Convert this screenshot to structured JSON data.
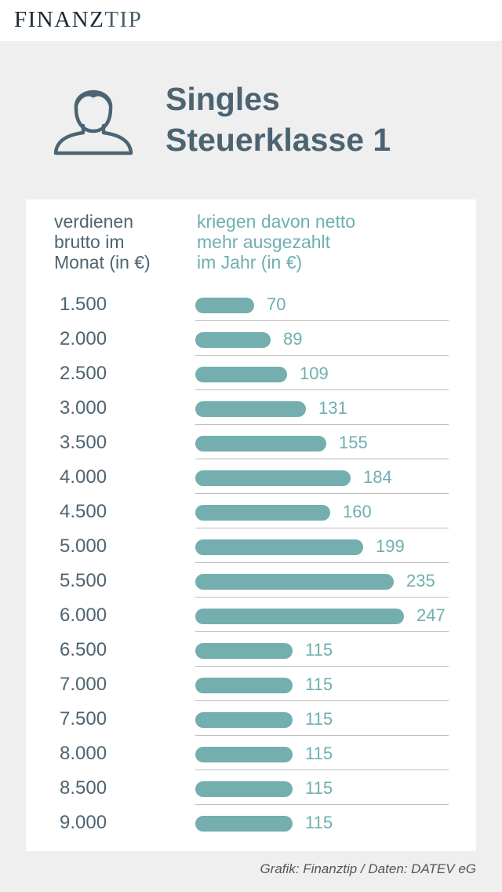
{
  "brand": {
    "name_main": "FINANZ",
    "name_accent": "TIP"
  },
  "header": {
    "icon": "person-icon",
    "title_line1": "Singles",
    "title_line2": "Steuerklasse 1"
  },
  "colors": {
    "bar": "#74aeaf",
    "value_text": "#6fafb0",
    "title_text": "#4c6472",
    "background": "#efefef"
  },
  "chart_data": {
    "type": "bar",
    "orientation": "horizontal",
    "column_headers": {
      "left": [
        "verdienen",
        "brutto im",
        "Monat (in €)"
      ],
      "right": [
        "kriegen davon netto",
        "mehr ausgezahlt",
        "im Jahr (in €)"
      ]
    },
    "categories": [
      "1.500",
      "2.000",
      "2.500",
      "3.000",
      "3.500",
      "4.000",
      "4.500",
      "5.000",
      "5.500",
      "6.000",
      "6.500",
      "7.000",
      "7.500",
      "8.000",
      "8.500",
      "9.000"
    ],
    "values": [
      70,
      89,
      109,
      131,
      155,
      184,
      160,
      199,
      235,
      247,
      115,
      115,
      115,
      115,
      115,
      115
    ],
    "data_labels": [
      "70",
      "89",
      "109",
      "131",
      "155",
      "184",
      "160",
      "199",
      "235",
      "247",
      "115",
      "115",
      "115",
      "115",
      "115",
      "115"
    ],
    "value_axis_range": [
      0,
      247
    ],
    "grid": false
  },
  "footer": {
    "source": "Grafik: Finanztip / Daten: DATEV eG"
  }
}
